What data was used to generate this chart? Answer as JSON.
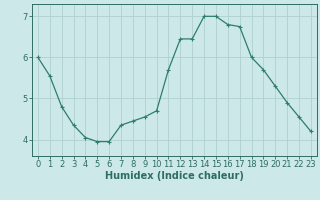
{
  "x": [
    0,
    1,
    2,
    3,
    4,
    5,
    6,
    7,
    8,
    9,
    10,
    11,
    12,
    13,
    14,
    15,
    16,
    17,
    18,
    19,
    20,
    21,
    22,
    23
  ],
  "y": [
    6.0,
    5.55,
    4.8,
    4.35,
    4.05,
    3.95,
    3.95,
    4.35,
    4.45,
    4.55,
    4.7,
    5.7,
    6.45,
    6.45,
    7.0,
    7.0,
    6.8,
    6.75,
    6.0,
    5.7,
    5.3,
    4.9,
    4.55,
    4.2
  ],
  "line_color": "#2e7d6e",
  "marker": "+",
  "marker_size": 3,
  "marker_linewidth": 0.8,
  "bg_color": "#cce8e8",
  "grid_color": "#b0d0d0",
  "xlabel": "Humidex (Indice chaleur)",
  "ylim": [
    3.6,
    7.3
  ],
  "xlim": [
    -0.5,
    23.5
  ],
  "yticks": [
    4,
    5,
    6,
    7
  ],
  "xtick_labels": [
    "0",
    "1",
    "2",
    "3",
    "4",
    "5",
    "6",
    "7",
    "8",
    "9",
    "10",
    "11",
    "12",
    "13",
    "14",
    "15",
    "16",
    "17",
    "18",
    "19",
    "20",
    "21",
    "22",
    "23"
  ],
  "xlabel_fontsize": 7,
  "tick_fontsize": 6,
  "tick_color": "#2e6e60",
  "axis_color": "#2e6e60",
  "line_width": 0.9
}
